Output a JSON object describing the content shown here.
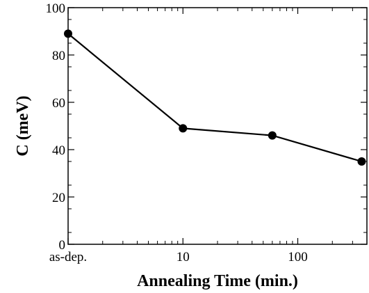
{
  "chart_data": {
    "type": "line",
    "title": "",
    "xlabel": "Annealing Time (min.)",
    "ylabel": "C (meV)",
    "x_scale": "log",
    "xlim": [
      1,
      400
    ],
    "ylim": [
      0,
      100
    ],
    "grid": false,
    "x_ticks": [
      {
        "value": 1,
        "label": "as-dep."
      },
      {
        "value": 10,
        "label": "10"
      },
      {
        "value": 100,
        "label": "100"
      }
    ],
    "y_ticks": [
      0,
      20,
      40,
      60,
      80,
      100
    ],
    "series": [
      {
        "points": [
          {
            "x": "as-dep.",
            "y": 89
          },
          {
            "x": 10,
            "y": 49
          },
          {
            "x": 60,
            "y": 46
          },
          {
            "x": 360,
            "y": 35
          }
        ]
      }
    ],
    "colors": {
      "line": "#000000",
      "marker": "#000000"
    }
  }
}
